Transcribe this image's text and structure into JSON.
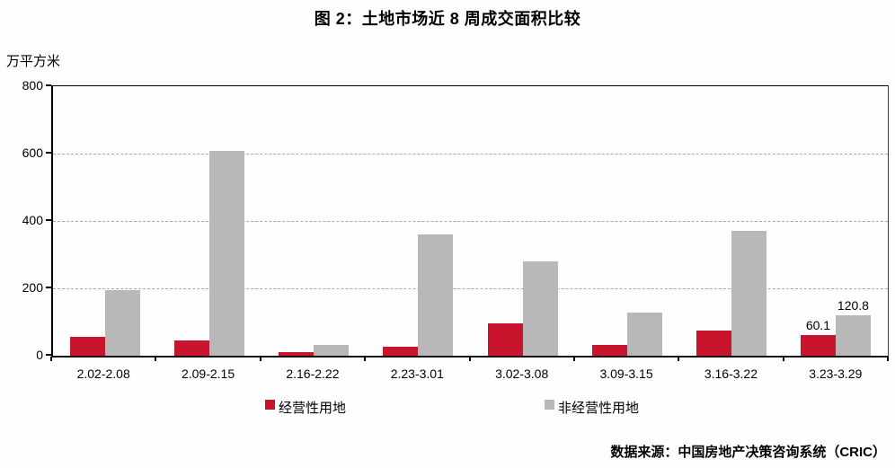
{
  "title": "图 2：土地市场近 8 周成交面积比较",
  "y_axis_unit": "万平方米",
  "source": "数据来源：中国房地产决策咨询系统（CRIC）",
  "colors": {
    "series_red": "#C9142E",
    "series_gray": "#B8B8B8",
    "grid": "#A9A9A9",
    "axis": "#000000"
  },
  "chart_data": {
    "type": "bar",
    "title": "图 2：土地市场近 8 周成交面积比较",
    "xlabel": "",
    "ylabel": "万平方米",
    "ylim": [
      0,
      800
    ],
    "yticks": [
      0,
      200,
      400,
      600,
      800
    ],
    "grid": "horizontal-dashed",
    "legend_position": "bottom",
    "categories": [
      "2.02-2.08",
      "2.09-2.15",
      "2.16-2.22",
      "2.23-3.01",
      "3.02-3.08",
      "3.09-3.15",
      "3.16-3.22",
      "3.23-3.29"
    ],
    "series": [
      {
        "name": "经营性用地",
        "color": "#C9142E",
        "values": [
          55,
          45,
          11,
          28,
          97,
          32,
          75,
          60.1
        ],
        "point_labels": [
          "",
          "",
          "",
          "",
          "",
          "",
          "",
          "60.1"
        ]
      },
      {
        "name": "非经营性用地",
        "color": "#B8B8B8",
        "values": [
          195,
          607,
          32,
          360,
          280,
          128,
          372,
          120.8
        ],
        "point_labels": [
          "",
          "",
          "",
          "",
          "",
          "",
          "",
          "120.8"
        ]
      }
    ]
  }
}
